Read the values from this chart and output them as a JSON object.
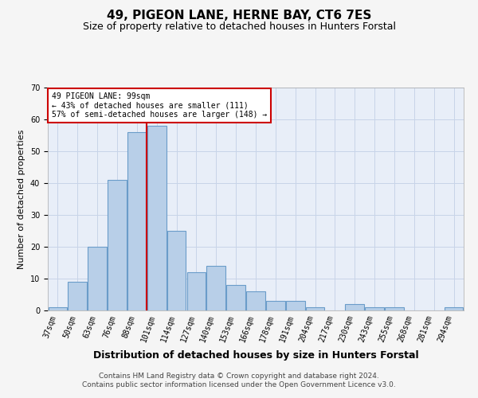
{
  "title": "49, PIGEON LANE, HERNE BAY, CT6 7ES",
  "subtitle": "Size of property relative to detached houses in Hunters Forstal",
  "xlabel": "Distribution of detached houses by size in Hunters Forstal",
  "ylabel": "Number of detached properties",
  "categories": [
    "37sqm",
    "50sqm",
    "63sqm",
    "76sqm",
    "88sqm",
    "101sqm",
    "114sqm",
    "127sqm",
    "140sqm",
    "153sqm",
    "166sqm",
    "178sqm",
    "191sqm",
    "204sqm",
    "217sqm",
    "230sqm",
    "243sqm",
    "255sqm",
    "268sqm",
    "281sqm",
    "294sqm"
  ],
  "values": [
    1,
    9,
    20,
    41,
    56,
    58,
    25,
    12,
    14,
    8,
    6,
    3,
    3,
    1,
    0,
    2,
    1,
    1,
    0,
    0,
    1
  ],
  "bar_color": "#b8cfe8",
  "bar_edge_color": "#6a9cc9",
  "vline_x_index": 5,
  "vline_color": "#cc0000",
  "annotation_text": "49 PIGEON LANE: 99sqm\n← 43% of detached houses are smaller (111)\n57% of semi-detached houses are larger (148) →",
  "annotation_box_color": "#ffffff",
  "annotation_box_edge": "#cc0000",
  "ylim": [
    0,
    70
  ],
  "yticks": [
    0,
    10,
    20,
    30,
    40,
    50,
    60,
    70
  ],
  "grid_color": "#c8d4e8",
  "background_color": "#e8eef8",
  "fig_background_color": "#f5f5f5",
  "footer_line1": "Contains HM Land Registry data © Crown copyright and database right 2024.",
  "footer_line2": "Contains public sector information licensed under the Open Government Licence v3.0.",
  "title_fontsize": 11,
  "subtitle_fontsize": 9,
  "tick_fontsize": 7,
  "ylabel_fontsize": 8,
  "xlabel_fontsize": 9
}
